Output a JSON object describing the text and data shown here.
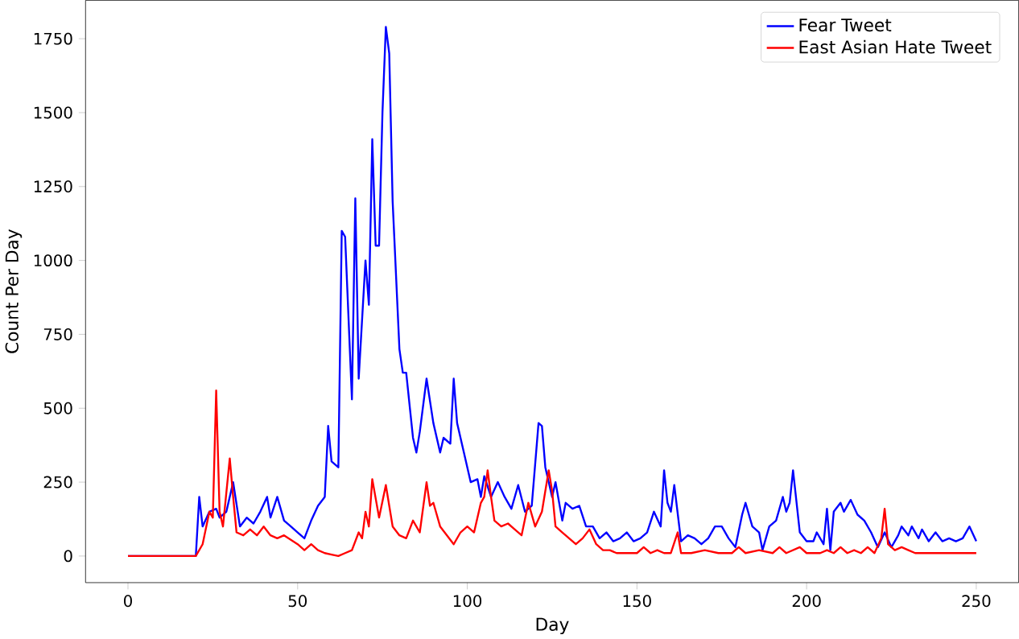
{
  "chart_data": {
    "type": "line",
    "xlabel": "Day",
    "ylabel": "Count Per Day",
    "xlim": [
      -12.5,
      262.5
    ],
    "ylim": [
      -90,
      1880
    ],
    "xticks": [
      0,
      50,
      100,
      150,
      200,
      250
    ],
    "yticks": [
      0,
      250,
      500,
      750,
      1000,
      1250,
      1500,
      1750
    ],
    "legend": "top right",
    "grid": false,
    "series": [
      {
        "name": "Fear Tweet",
        "color": "#0000ff",
        "x": [
          0,
          20,
          21,
          22,
          24,
          26,
          27,
          29,
          31,
          33,
          35,
          37,
          39,
          41,
          42,
          44,
          46,
          48,
          50,
          52,
          54,
          56,
          58,
          59,
          60,
          62,
          63,
          64,
          66,
          67,
          68,
          70,
          71,
          72,
          73,
          74,
          75,
          76,
          77,
          78,
          80,
          81,
          82,
          84,
          85,
          86,
          88,
          90,
          92,
          93,
          95,
          96,
          97,
          99,
          101,
          103,
          104,
          105,
          107,
          109,
          111,
          113,
          115,
          117,
          119,
          121,
          122,
          123,
          125,
          126,
          128,
          129,
          131,
          133,
          135,
          137,
          139,
          141,
          143,
          145,
          147,
          149,
          151,
          153,
          155,
          157,
          158,
          159,
          160,
          161,
          163,
          165,
          167,
          169,
          171,
          173,
          175,
          177,
          179,
          181,
          182,
          184,
          186,
          187,
          189,
          191,
          193,
          194,
          195,
          196,
          198,
          200,
          202,
          203,
          205,
          206,
          207,
          208,
          210,
          211,
          213,
          215,
          217,
          219,
          221,
          223,
          225,
          227,
          228,
          230,
          231,
          233,
          234,
          236,
          238,
          240,
          242,
          244,
          246,
          248,
          250
        ],
        "values": [
          0,
          0,
          200,
          100,
          150,
          160,
          130,
          150,
          250,
          100,
          130,
          110,
          150,
          200,
          130,
          200,
          120,
          100,
          80,
          60,
          120,
          170,
          200,
          440,
          320,
          300,
          1100,
          1080,
          530,
          1210,
          600,
          1000,
          850,
          1410,
          1050,
          1050,
          1500,
          1790,
          1700,
          1200,
          700,
          620,
          620,
          400,
          350,
          420,
          600,
          450,
          350,
          400,
          380,
          600,
          450,
          350,
          250,
          260,
          200,
          270,
          200,
          250,
          200,
          160,
          240,
          150,
          170,
          450,
          440,
          300,
          200,
          250,
          120,
          180,
          160,
          170,
          100,
          100,
          60,
          80,
          50,
          60,
          80,
          50,
          60,
          80,
          150,
          100,
          290,
          180,
          150,
          240,
          50,
          70,
          60,
          40,
          60,
          100,
          100,
          60,
          30,
          140,
          180,
          100,
          80,
          20,
          100,
          120,
          200,
          150,
          180,
          290,
          80,
          50,
          50,
          80,
          40,
          160,
          20,
          150,
          180,
          150,
          190,
          140,
          120,
          80,
          30,
          80,
          30,
          70,
          100,
          70,
          100,
          60,
          90,
          50,
          80,
          50,
          60,
          50,
          60,
          100,
          50
        ]
      },
      {
        "name": "East Asian Hate Tweet",
        "color": "#ff0000",
        "x": [
          0,
          20,
          22,
          24,
          25,
          26,
          27,
          28,
          30,
          31,
          32,
          34,
          36,
          38,
          40,
          42,
          44,
          46,
          50,
          52,
          54,
          56,
          58,
          60,
          62,
          64,
          66,
          68,
          69,
          70,
          71,
          72,
          74,
          76,
          78,
          80,
          82,
          84,
          86,
          88,
          89,
          90,
          92,
          94,
          96,
          98,
          100,
          102,
          104,
          105,
          106,
          107,
          108,
          110,
          112,
          114,
          116,
          118,
          120,
          122,
          124,
          125,
          126,
          128,
          130,
          132,
          134,
          136,
          138,
          140,
          142,
          144,
          148,
          150,
          152,
          154,
          156,
          158,
          160,
          162,
          163,
          166,
          170,
          174,
          178,
          180,
          182,
          186,
          190,
          192,
          194,
          198,
          200,
          204,
          206,
          208,
          210,
          212,
          214,
          216,
          218,
          220,
          222,
          223,
          224,
          226,
          228,
          230,
          232,
          236,
          240,
          244,
          250
        ],
        "values": [
          0,
          0,
          40,
          150,
          130,
          560,
          150,
          100,
          330,
          200,
          80,
          70,
          90,
          70,
          100,
          70,
          60,
          70,
          40,
          20,
          40,
          20,
          10,
          5,
          0,
          10,
          20,
          80,
          60,
          150,
          100,
          260,
          130,
          240,
          100,
          70,
          60,
          120,
          80,
          250,
          170,
          180,
          100,
          70,
          40,
          80,
          100,
          80,
          180,
          200,
          290,
          200,
          120,
          100,
          110,
          90,
          70,
          180,
          100,
          150,
          290,
          220,
          100,
          80,
          60,
          40,
          60,
          90,
          40,
          20,
          20,
          10,
          10,
          10,
          30,
          10,
          20,
          10,
          10,
          80,
          10,
          10,
          20,
          10,
          10,
          30,
          10,
          20,
          10,
          30,
          10,
          30,
          10,
          10,
          20,
          10,
          30,
          10,
          20,
          10,
          30,
          10,
          60,
          160,
          40,
          20,
          30,
          20,
          10,
          10,
          10,
          10,
          10
        ]
      }
    ]
  }
}
